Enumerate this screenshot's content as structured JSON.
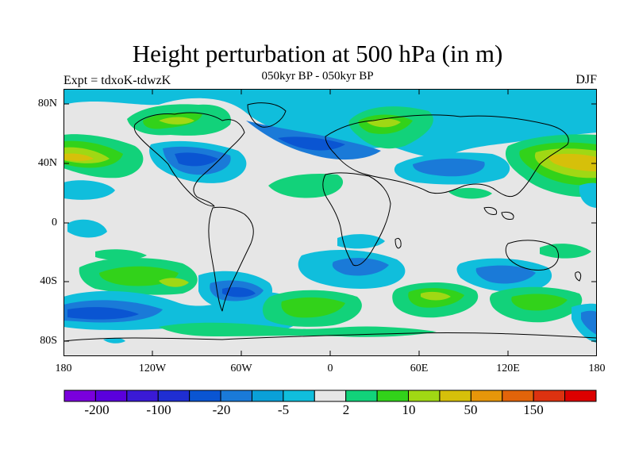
{
  "title": "Height perturbation at 500 hPa (in m)",
  "subtitle": "050kyr BP - 050kyr BP",
  "experiment": "Expt = tdxoK-tdwzK",
  "season": "DJF",
  "lat_ticks": [
    "80N",
    "40N",
    "0",
    "40S",
    "80S"
  ],
  "lon_ticks": [
    "180",
    "120W",
    "60W",
    "0",
    "60E",
    "120E",
    "180"
  ],
  "colorbar": {
    "colors": [
      "#7a00dc",
      "#5a00dc",
      "#3a1ad6",
      "#1f2ed2",
      "#0a55d2",
      "#1a7ad8",
      "#0aa0d8",
      "#10bedc",
      "#e6e6e6",
      "#12d27a",
      "#32d21a",
      "#a0d814",
      "#d6c00a",
      "#e6960a",
      "#e2640a",
      "#dc3210",
      "#dc0000"
    ],
    "labels": [
      "-200",
      "-100",
      "-20",
      "-5",
      "2",
      "10",
      "50",
      "150"
    ]
  }
}
